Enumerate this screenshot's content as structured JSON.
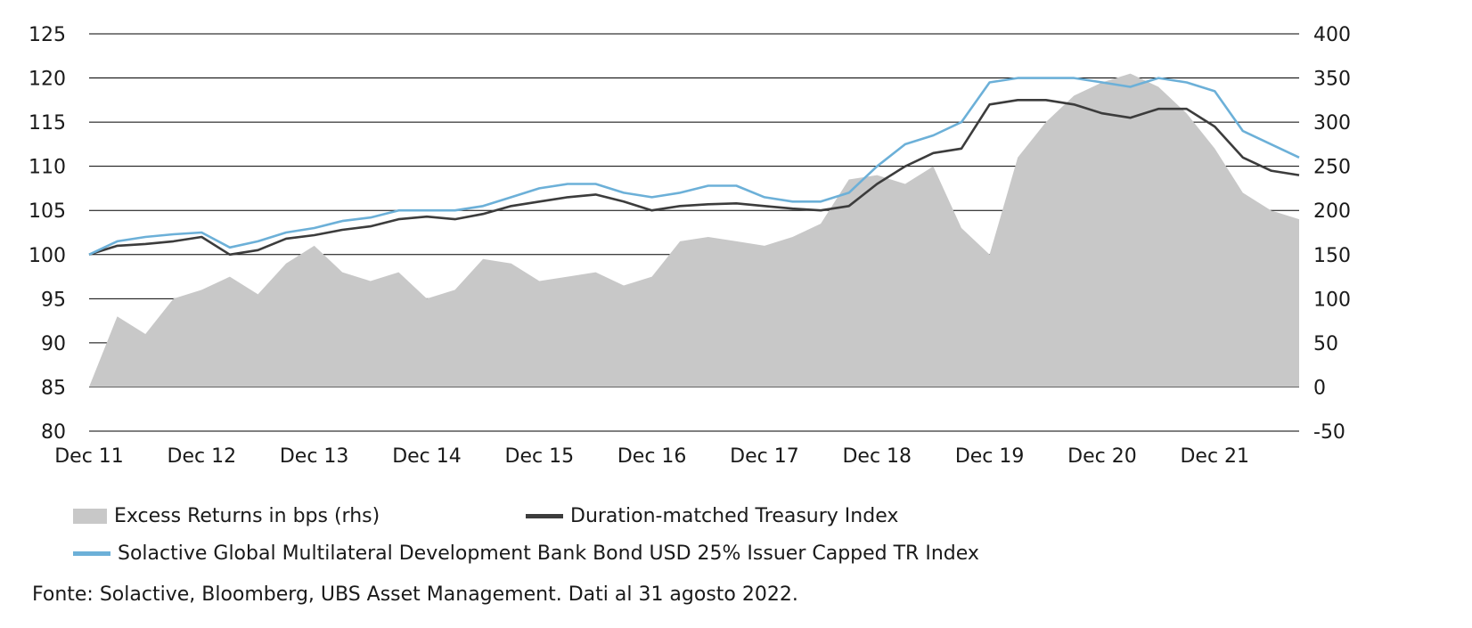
{
  "chart_data": {
    "type": "line",
    "x": [
      "Dec 11",
      "Mar 12",
      "Jun 12",
      "Sep 12",
      "Dec 12",
      "Mar 13",
      "Jun 13",
      "Sep 13",
      "Dec 13",
      "Mar 14",
      "Jun 14",
      "Sep 14",
      "Dec 14",
      "Mar 15",
      "Jun 15",
      "Sep 15",
      "Dec 15",
      "Mar 16",
      "Jun 16",
      "Sep 16",
      "Dec 16",
      "Mar 17",
      "Jun 17",
      "Sep 17",
      "Dec 17",
      "Mar 18",
      "Jun 18",
      "Sep 18",
      "Dec 18",
      "Mar 19",
      "Jun 19",
      "Sep 19",
      "Dec 19",
      "Mar 20",
      "Jun 20",
      "Sep 20",
      "Dec 20",
      "Mar 21",
      "Jun 21",
      "Sep 21",
      "Dec 21",
      "Mar 22",
      "Jun 22",
      "Aug 22"
    ],
    "x_tick_labels": [
      "Dec 11",
      "Dec 12",
      "Dec 13",
      "Dec 14",
      "Dec 15",
      "Dec 16",
      "Dec 17",
      "Dec 18",
      "Dec 19",
      "Dec 20",
      "Dec 21"
    ],
    "y_left": {
      "min": 80,
      "max": 125,
      "ticks": [
        "125",
        "120",
        "115",
        "110",
        "105",
        "100",
        "95",
        "90",
        "85",
        "80"
      ]
    },
    "y_right": {
      "min": -50,
      "max": 400,
      "ticks": [
        "400",
        "350",
        "300",
        "250",
        "200",
        "150",
        "100",
        "50",
        "0",
        "-50"
      ]
    },
    "grid": true,
    "series": [
      {
        "name": "Excess Returns in bps (rhs)",
        "type": "area",
        "axis": "right",
        "color": "#c8c8c8",
        "values": [
          0,
          80,
          60,
          100,
          110,
          125,
          105,
          140,
          160,
          130,
          120,
          130,
          100,
          110,
          145,
          140,
          120,
          125,
          130,
          115,
          125,
          165,
          170,
          165,
          160,
          170,
          185,
          235,
          240,
          230,
          250,
          180,
          150,
          260,
          300,
          330,
          345,
          355,
          340,
          310,
          270,
          220,
          200,
          190
        ]
      },
      {
        "name": "Duration-matched Treasury Index",
        "type": "line",
        "axis": "left",
        "color": "#3c3c3c",
        "values": [
          100.0,
          101.0,
          101.2,
          101.5,
          102.0,
          100.0,
          100.5,
          101.8,
          102.2,
          102.8,
          103.2,
          104.0,
          104.3,
          104.0,
          104.6,
          105.5,
          106.0,
          106.5,
          106.8,
          106.0,
          105.0,
          105.5,
          105.7,
          105.8,
          105.5,
          105.2,
          105.0,
          105.5,
          108.0,
          110.0,
          111.5,
          112.0,
          117.0,
          117.5,
          117.5,
          117.0,
          116.0,
          115.5,
          116.5,
          116.5,
          114.5,
          111.0,
          109.5,
          109.0
        ]
      },
      {
        "name": "Solactive Global Multilateral Development Bank Bond USD 25% Issuer Capped TR Index",
        "type": "line",
        "axis": "left",
        "color": "#6cb0d8",
        "values": [
          100.0,
          101.5,
          102.0,
          102.3,
          102.5,
          100.8,
          101.5,
          102.5,
          103.0,
          103.8,
          104.2,
          105.0,
          105.0,
          105.0,
          105.5,
          106.5,
          107.5,
          108.0,
          108.0,
          107.0,
          106.5,
          107.0,
          107.8,
          107.8,
          106.5,
          106.0,
          106.0,
          107.0,
          110.0,
          112.5,
          113.5,
          115.0,
          119.5,
          120.0,
          120.0,
          120.0,
          119.5,
          119.0,
          120.0,
          119.5,
          118.5,
          114.0,
          112.5,
          111.0
        ]
      }
    ]
  },
  "source_text": "Fonte: Solactive, Bloomberg, UBS Asset Management. Dati al 31 agosto 2022."
}
